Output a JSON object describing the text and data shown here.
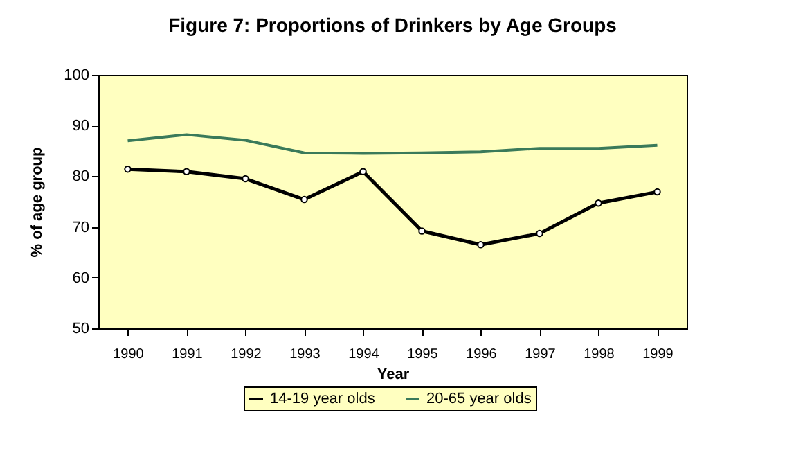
{
  "chart_data": {
    "type": "line",
    "title": "Figure 7: Proportions of Drinkers by Age Groups",
    "xlabel": "Year",
    "ylabel": "% of age group",
    "categories": [
      "1990",
      "1991",
      "1992",
      "1993",
      "1994",
      "1995",
      "1996",
      "1997",
      "1998",
      "1999"
    ],
    "series": [
      {
        "name": "14-19 year olds",
        "color": "#000000",
        "marker": "circle",
        "values": [
          81.4,
          80.9,
          79.5,
          75.4,
          80.9,
          69.2,
          66.5,
          68.7,
          74.7,
          76.9
        ]
      },
      {
        "name": "20-65 year olds",
        "color": "#3a7a5a",
        "marker": "none",
        "values": [
          87.0,
          88.2,
          87.1,
          84.6,
          84.5,
          84.6,
          84.8,
          85.5,
          85.5,
          86.1
        ]
      }
    ],
    "ylim": [
      50,
      100
    ],
    "yticks": [
      50,
      60,
      70,
      80,
      90,
      100
    ],
    "grid": false,
    "legend": "bottom"
  }
}
